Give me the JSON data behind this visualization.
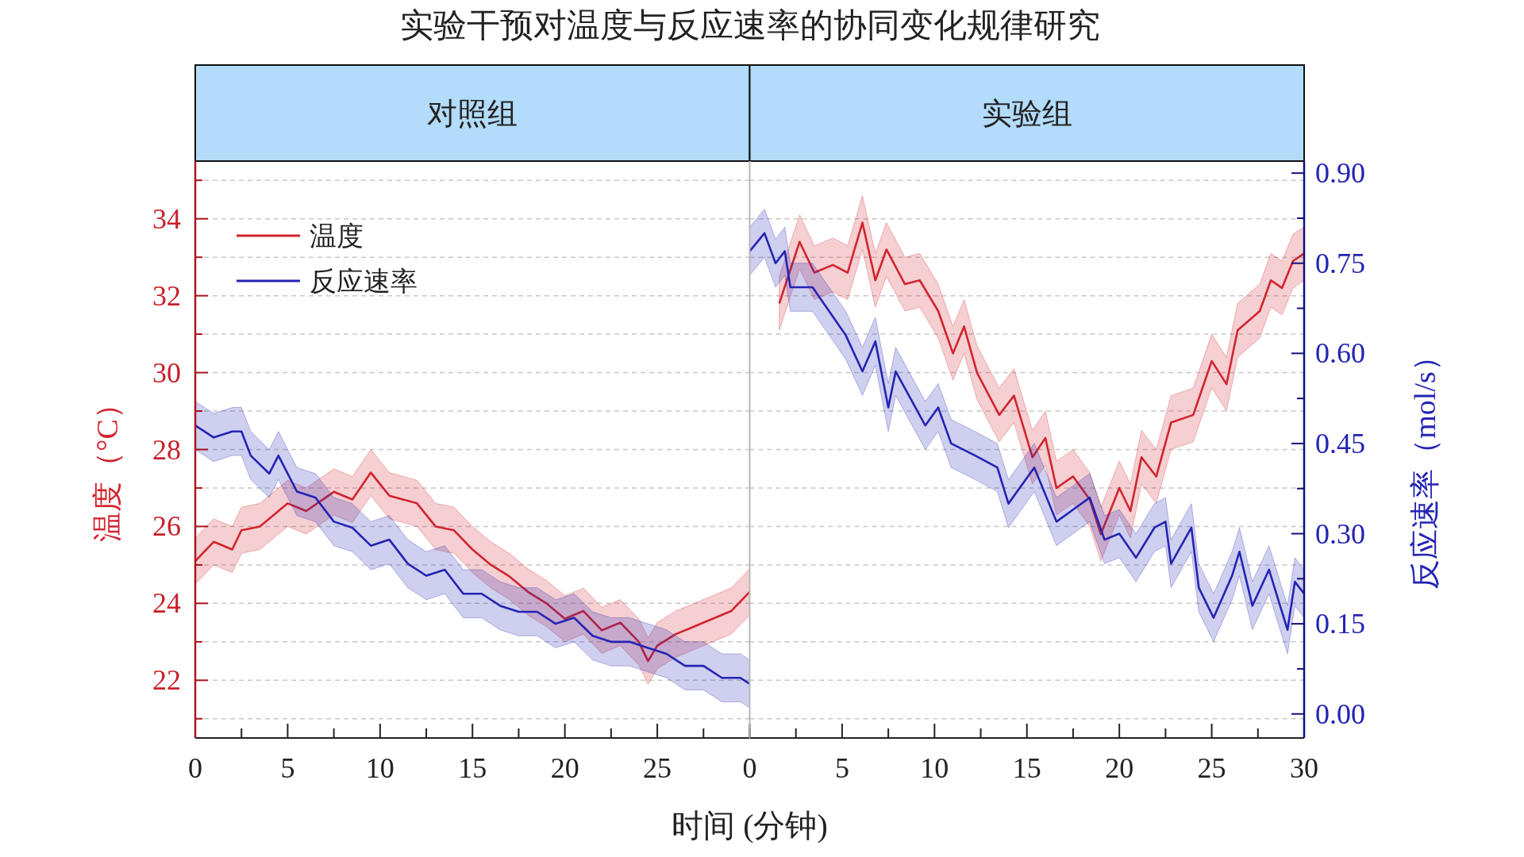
{
  "chart_data": [
    {
      "type": "line",
      "title": "对照组",
      "annotations": [
        "实验干预对温度与反应速率的协同变化规律研究"
      ],
      "xlabel": "时间 (分钟)",
      "ylabel": "温度（°C）",
      "legend": "top left",
      "grid": "y",
      "tick_labels": [
        "x",
        "y"
      ],
      "xlim": [
        0,
        30
      ],
      "xticks": [
        0,
        {
          "value": 2.5,
          "label": null
        },
        5,
        {
          "value": 7.5,
          "label": null
        },
        10,
        {
          "value": 12.5,
          "label": null
        },
        15,
        {
          "value": 17.5,
          "label": null
        },
        20,
        {
          "value": 22.5,
          "label": null
        },
        25,
        {
          "value": 27.5,
          "label": null
        },
        {
          "value": 30,
          "label": null
        }
      ],
      "ylim": [
        20.5,
        35.5
      ],
      "yticks": [
        {
          "value": 21,
          "label": null
        },
        22,
        {
          "value": 23,
          "label": null
        },
        24,
        {
          "value": 25,
          "label": null
        },
        26,
        {
          "value": 27,
          "label": null
        },
        28,
        {
          "value": 29,
          "label": null
        },
        30,
        {
          "value": 31,
          "label": null
        },
        32,
        {
          "value": 33,
          "label": null
        },
        34,
        {
          "value": 35,
          "label": null
        }
      ],
      "y2lim": [
        -0.04,
        0.92
      ],
      "series": [
        {
          "name": "温度",
          "color": "#d1242f",
          "x": [
            0,
            1,
            2,
            2.5,
            3.5,
            5,
            6,
            7.5,
            8.5,
            9.5,
            10.5,
            12,
            13,
            14,
            15,
            16,
            17,
            18,
            19,
            20,
            21,
            22,
            23,
            24,
            24.5,
            25,
            26,
            27,
            28,
            29,
            30
          ],
          "values": [
            25.1,
            25.6,
            25.4,
            25.9,
            26.0,
            26.6,
            26.4,
            26.9,
            26.7,
            27.4,
            26.8,
            26.6,
            26.0,
            25.9,
            25.4,
            25.0,
            24.7,
            24.3,
            24.0,
            23.6,
            23.8,
            23.3,
            23.5,
            23.0,
            22.5,
            22.9,
            23.2,
            23.4,
            23.6,
            23.8,
            24.3
          ],
          "lower": [
            24.5,
            25.0,
            24.8,
            25.3,
            25.4,
            26.0,
            25.8,
            26.3,
            26.1,
            26.8,
            26.2,
            26.0,
            25.4,
            25.3,
            24.8,
            24.4,
            24.1,
            23.7,
            23.4,
            23.0,
            23.2,
            22.7,
            22.9,
            22.4,
            21.9,
            22.3,
            22.6,
            22.8,
            23.0,
            23.2,
            23.7
          ],
          "upper": [
            25.7,
            26.2,
            26.0,
            26.5,
            26.6,
            27.2,
            27.0,
            27.5,
            27.3,
            28.0,
            27.4,
            27.2,
            26.6,
            26.5,
            26.0,
            25.6,
            25.3,
            24.9,
            24.6,
            24.2,
            24.4,
            23.9,
            24.1,
            23.6,
            23.1,
            23.5,
            23.8,
            24.0,
            24.2,
            24.4,
            24.9
          ]
        },
        {
          "name": "反应速率",
          "color": "#2424b4",
          "axis": "y2",
          "x": [
            0,
            1,
            2,
            2.5,
            3,
            4,
            4.5,
            5.5,
            6.5,
            7.5,
            8.5,
            9.5,
            10.5,
            11.5,
            12.5,
            13.5,
            14.5,
            15.5,
            16.5,
            17.5,
            18.5,
            19.5,
            20.5,
            21.5,
            22.5,
            23.5,
            24.5,
            25.5,
            26.5,
            27.5,
            28.5,
            29.5,
            30
          ],
          "values": [
            0.48,
            0.46,
            0.47,
            0.47,
            0.43,
            0.4,
            0.43,
            0.37,
            0.36,
            0.32,
            0.31,
            0.28,
            0.29,
            0.25,
            0.23,
            0.24,
            0.2,
            0.2,
            0.18,
            0.17,
            0.17,
            0.15,
            0.16,
            0.13,
            0.12,
            0.12,
            0.11,
            0.1,
            0.08,
            0.08,
            0.06,
            0.06,
            0.05
          ],
          "lower": [
            0.44,
            0.42,
            0.43,
            0.43,
            0.39,
            0.36,
            0.39,
            0.33,
            0.32,
            0.28,
            0.27,
            0.24,
            0.25,
            0.21,
            0.19,
            0.2,
            0.16,
            0.16,
            0.14,
            0.13,
            0.13,
            0.11,
            0.12,
            0.09,
            0.08,
            0.08,
            0.07,
            0.06,
            0.04,
            0.04,
            0.02,
            0.02,
            0.01
          ],
          "upper": [
            0.52,
            0.5,
            0.51,
            0.51,
            0.47,
            0.44,
            0.47,
            0.41,
            0.4,
            0.36,
            0.35,
            0.32,
            0.33,
            0.29,
            0.27,
            0.28,
            0.24,
            0.24,
            0.22,
            0.21,
            0.21,
            0.19,
            0.2,
            0.17,
            0.16,
            0.16,
            0.15,
            0.14,
            0.12,
            0.12,
            0.1,
            0.1,
            0.09
          ]
        }
      ]
    },
    {
      "type": "line",
      "title": "实验组",
      "y2label": "反应速率（mol/s）",
      "grid": "y",
      "tick_labels": [
        "x",
        "y2"
      ],
      "xlim": [
        0,
        30
      ],
      "xticks": [
        0,
        {
          "value": 2.5,
          "label": null
        },
        5,
        {
          "value": 7.5,
          "label": null
        },
        10,
        {
          "value": 12.5,
          "label": null
        },
        15,
        {
          "value": 17.5,
          "label": null
        },
        20,
        {
          "value": 22.5,
          "label": null
        },
        25,
        {
          "value": 27.5,
          "label": null
        },
        30
      ],
      "ylim": [
        20.5,
        35.5
      ],
      "y2lim": [
        -0.04,
        0.92
      ],
      "y2ticks": [
        {
          "value": 0,
          "label": "0.00"
        },
        {
          "value": 0.075,
          "label": null
        },
        {
          "value": 0.15,
          "label": "0.15"
        },
        {
          "value": 0.225,
          "label": null
        },
        {
          "value": 0.3,
          "label": "0.30"
        },
        {
          "value": 0.375,
          "label": null
        },
        {
          "value": 0.45,
          "label": "0.45"
        },
        {
          "value": 0.525,
          "label": null
        },
        {
          "value": 0.6,
          "label": "0.60"
        },
        {
          "value": 0.675,
          "label": null
        },
        {
          "value": 0.75,
          "label": "0.75"
        },
        {
          "value": 0.825,
          "label": null
        },
        {
          "value": 0.9,
          "label": "0.90"
        }
      ],
      "series": [
        {
          "color": "#d1242f",
          "x": [
            1.6,
            2.7,
            3.5,
            4.5,
            5.3,
            6.1,
            6.8,
            7.4,
            8.4,
            9.2,
            10.2,
            11.0,
            11.6,
            12.3,
            13.5,
            14.3,
            15.3,
            16.0,
            16.6,
            17.5,
            18.4,
            19.0,
            20.0,
            20.6,
            21.2,
            22.0,
            22.8,
            24.0,
            25.0,
            25.8,
            26.4,
            27.6,
            28.2,
            28.8,
            29.4,
            30
          ],
          "values": [
            31.8,
            33.4,
            32.6,
            32.8,
            32.6,
            33.9,
            32.4,
            33.2,
            32.3,
            32.4,
            31.6,
            30.5,
            31.2,
            30.0,
            28.9,
            29.4,
            27.8,
            28.3,
            27.0,
            27.3,
            26.7,
            25.8,
            27.0,
            26.4,
            27.8,
            27.3,
            28.7,
            28.9,
            30.3,
            29.7,
            31.1,
            31.6,
            32.4,
            32.2,
            32.9,
            33.1
          ],
          "lower": [
            31.1,
            32.7,
            31.9,
            32.1,
            31.9,
            33.2,
            31.7,
            32.5,
            31.6,
            31.7,
            30.9,
            29.8,
            30.5,
            29.3,
            28.2,
            28.7,
            27.1,
            27.6,
            26.3,
            26.6,
            26.0,
            25.1,
            26.3,
            25.7,
            27.1,
            26.6,
            28.0,
            28.2,
            29.6,
            29.0,
            30.4,
            30.9,
            31.7,
            31.5,
            32.2,
            32.4
          ],
          "upper": [
            32.5,
            34.1,
            33.3,
            33.5,
            33.3,
            34.6,
            33.1,
            33.9,
            33.0,
            33.1,
            32.3,
            31.2,
            31.9,
            30.7,
            29.6,
            30.1,
            28.5,
            29.0,
            27.7,
            28.0,
            27.4,
            26.5,
            27.7,
            27.1,
            28.5,
            28.0,
            29.4,
            29.6,
            31.0,
            30.4,
            31.8,
            32.3,
            33.1,
            32.9,
            33.6,
            33.8
          ]
        },
        {
          "color": "#2424b4",
          "axis": "y2",
          "x": [
            0,
            0.8,
            1.4,
            1.9,
            2.2,
            3.4,
            4.3,
            5.2,
            6.1,
            6.8,
            7.5,
            7.9,
            9.5,
            10.2,
            10.9,
            12.2,
            13.4,
            14.0,
            15.4,
            16.6,
            17.5,
            18.4,
            19.2,
            20.0,
            20.9,
            21.9,
            22.5,
            22.8,
            23.9,
            24.3,
            25.1,
            26.1,
            26.5,
            27.2,
            28.1,
            29.1,
            29.5,
            30
          ],
          "values": [
            0.77,
            0.8,
            0.75,
            0.77,
            0.71,
            0.71,
            0.67,
            0.63,
            0.57,
            0.62,
            0.51,
            0.57,
            0.48,
            0.51,
            0.45,
            0.43,
            0.41,
            0.35,
            0.41,
            0.32,
            0.34,
            0.36,
            0.29,
            0.3,
            0.26,
            0.31,
            0.32,
            0.25,
            0.31,
            0.21,
            0.16,
            0.23,
            0.27,
            0.18,
            0.24,
            0.14,
            0.22,
            0.2
          ],
          "lower": [
            0.73,
            0.76,
            0.71,
            0.73,
            0.67,
            0.67,
            0.63,
            0.59,
            0.53,
            0.58,
            0.47,
            0.53,
            0.44,
            0.47,
            0.41,
            0.39,
            0.37,
            0.31,
            0.37,
            0.28,
            0.3,
            0.32,
            0.25,
            0.26,
            0.22,
            0.27,
            0.28,
            0.21,
            0.27,
            0.17,
            0.12,
            0.19,
            0.23,
            0.14,
            0.2,
            0.1,
            0.18,
            0.16
          ],
          "upper": [
            0.81,
            0.84,
            0.79,
            0.81,
            0.75,
            0.75,
            0.71,
            0.67,
            0.61,
            0.66,
            0.55,
            0.61,
            0.52,
            0.55,
            0.49,
            0.47,
            0.45,
            0.39,
            0.45,
            0.36,
            0.38,
            0.4,
            0.33,
            0.34,
            0.3,
            0.35,
            0.36,
            0.29,
            0.35,
            0.25,
            0.2,
            0.27,
            0.31,
            0.22,
            0.28,
            0.18,
            0.26,
            0.24
          ]
        }
      ]
    }
  ]
}
